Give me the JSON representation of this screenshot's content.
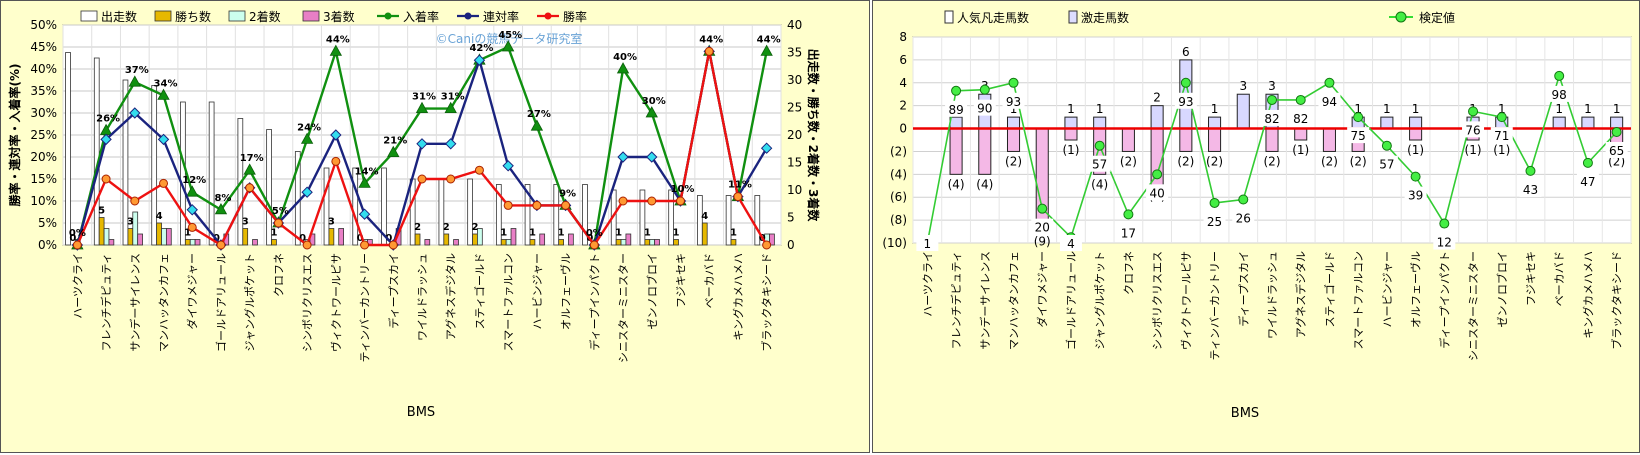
{
  "left_chart": {
    "watermark": "©Caniの競馬データ研究室",
    "legend": [
      {
        "label": "出走数",
        "kind": "bar",
        "color": "#ffffff"
      },
      {
        "label": "勝ち数",
        "kind": "bar",
        "color": "#e6b800"
      },
      {
        "label": "2着数",
        "kind": "bar",
        "color": "#ccffee"
      },
      {
        "label": "3着数",
        "kind": "bar",
        "color": "#e87fc6"
      },
      {
        "label": "入着率",
        "kind": "line",
        "color": "#109010"
      },
      {
        "label": "連対率",
        "kind": "line",
        "color": "#1a237e"
      },
      {
        "label": "勝率",
        "kind": "line",
        "color": "#ee1111"
      }
    ],
    "colors": {
      "starts": "#ffffff",
      "wins": "#e6b800",
      "seconds": "#ccffee",
      "thirds": "#e87fc6",
      "place": "#109010",
      "quinella": "#1a237e",
      "win": "#ee1111"
    }
  },
  "right_chart": {
    "legend": [
      {
        "label": "人気凡走馬数",
        "kind": "bar",
        "color": "#ffffff"
      },
      {
        "label": "激走馬数",
        "kind": "bar",
        "color": "#ddddff"
      },
      {
        "label": "検定値",
        "kind": "line",
        "color": "#33dd33"
      }
    ],
    "colors": {
      "upset": "#d8d8ff",
      "flop": "#f4b8e6",
      "stat": "#33cc33",
      "zero": "#ee0000"
    }
  },
  "chart_data": [
    {
      "type": "bar",
      "xlabel": "BMS",
      "ylabel": "勝率・連対率・入着率(%)",
      "y2label": "出走数・勝ち数・2着数・3着数",
      "ylim": [
        0,
        50
      ],
      "y2lim": [
        0,
        40
      ],
      "yticks": [
        "0%",
        "5%",
        "10%",
        "15%",
        "20%",
        "25%",
        "30%",
        "35%",
        "40%",
        "45%",
        "50%"
      ],
      "y2ticks": [
        "0",
        "5",
        "10",
        "15",
        "20",
        "25",
        "30",
        "35",
        "40"
      ],
      "categories": [
        "ハーツクライ",
        "フレンチデピュティ",
        "サンデーサイレンス",
        "マンハッタンカフェ",
        "ダイワメジャー",
        "ゴールドアリュール",
        "ジャングルポケット",
        "クロフネ",
        "シンボリクリスエス",
        "ヴィクトワールピサ",
        "ティンバーカントリー",
        "ディープスカイ",
        "ワイルドラッシュ",
        "アグネスデジタル",
        "スティゴールド",
        "スマートファルコン",
        "ハービンジャー",
        "オルフェーヴル",
        "ディープインパクト",
        "シニスターミニスター",
        "ゼンノロブロイ",
        "フジキセキ",
        "ベーカバド",
        "キングカメハメハ",
        "ブラックタキシード"
      ],
      "series": [
        {
          "name": "出走数",
          "axis": "right",
          "values": [
            35,
            34,
            30,
            29,
            26,
            26,
            23,
            21,
            17,
            14,
            14,
            14,
            12,
            12,
            12,
            11,
            11,
            11,
            11,
            10,
            10,
            10,
            9,
            9,
            9
          ]
        },
        {
          "name": "勝ち数",
          "axis": "right",
          "values": [
            0,
            5,
            3,
            4,
            1,
            0,
            3,
            1,
            0,
            3,
            0,
            0,
            2,
            2,
            2,
            1,
            1,
            1,
            0,
            1,
            1,
            1,
            4,
            1,
            0
          ]
        },
        {
          "name": "2着数",
          "axis": "right",
          "values": [
            1,
            3,
            6,
            3,
            1,
            0,
            0,
            0,
            1,
            0,
            1,
            0,
            0,
            0,
            3,
            1,
            0,
            0,
            0,
            1,
            1,
            0,
            0,
            0,
            2
          ]
        },
        {
          "name": "3着数",
          "axis": "right",
          "values": [
            0,
            1,
            2,
            3,
            1,
            2,
            1,
            0,
            2,
            3,
            1,
            3,
            1,
            1,
            0,
            3,
            2,
            2,
            0,
            2,
            1,
            0,
            0,
            0,
            2
          ]
        },
        {
          "name": "入着率",
          "axis": "left",
          "values": [
            0,
            26,
            37,
            34,
            12,
            8,
            17,
            5,
            24,
            44,
            14,
            21,
            31,
            31,
            42,
            45,
            27,
            9,
            0,
            40,
            30,
            10,
            44,
            11,
            44
          ]
        },
        {
          "name": "連対率",
          "axis": "left",
          "values": [
            0,
            24,
            30,
            24,
            8,
            0,
            13,
            5,
            12,
            25,
            7,
            0,
            23,
            23,
            42,
            18,
            9,
            9,
            0,
            20,
            20,
            10,
            44,
            11,
            22
          ]
        },
        {
          "name": "勝率",
          "axis": "left",
          "values": [
            0,
            15,
            10,
            14,
            4,
            0,
            13,
            5,
            0,
            19,
            0,
            0,
            15,
            15,
            17,
            9,
            9,
            9,
            0,
            10,
            10,
            10,
            44,
            11,
            0
          ]
        }
      ],
      "data_labels": {
        "place": [
          "0%",
          "26%",
          "37%",
          "34%",
          "12%",
          "8%",
          "17%",
          "5%",
          "24%",
          "44%",
          "14%",
          "21%",
          "31%",
          "31%",
          "42%",
          "45%",
          "27%",
          "9%",
          "0%",
          "40%",
          "30%",
          "10%",
          "44%",
          "11%",
          "44%"
        ],
        "wins": [
          "0",
          "5",
          "3",
          "4",
          "1",
          "0",
          "3",
          "1",
          "0",
          "3",
          "0",
          "0",
          "2",
          "2",
          "2",
          "1",
          "1",
          "1",
          "0",
          "1",
          "1",
          "1",
          "4",
          "1",
          "0"
        ]
      },
      "grid": true,
      "legend_position": "top"
    },
    {
      "type": "bar",
      "xlabel": "BMS",
      "ylim": [
        -10,
        8
      ],
      "yticks": [
        "(10)",
        "(8)",
        "(6)",
        "(4)",
        "(2)",
        "0",
        "2",
        "4",
        "6",
        "8"
      ],
      "categories": [
        "ハーツクライ",
        "フレンチデピュティ",
        "サンデーサイレンス",
        "マンハッタンカフェ",
        "ダイワメジャー",
        "ゴールドアリュール",
        "ジャングルポケット",
        "クロフネ",
        "シンボリクリスエス",
        "ヴィクトワールピサ",
        "ティンバーカントリー",
        "ディープスカイ",
        "ワイルドラッシュ",
        "アグネスデジタル",
        "スティゴールド",
        "スマートファルコン",
        "ハービンジャー",
        "オルフェーヴル",
        "ディープインパクト",
        "シニスターミニスター",
        "ゼンノロブロイ",
        "フジキセキ",
        "ベーカバド",
        "キングカメハメハ",
        "ブラックタキシード"
      ],
      "series": [
        {
          "name": "人気凡走馬数",
          "values": [
            0,
            -4,
            -4,
            -2,
            -9,
            -1,
            -4,
            -2,
            -5,
            -2,
            -2,
            0,
            -2,
            -1,
            -2,
            -2,
            0,
            -1,
            0,
            -1,
            -1,
            0,
            0,
            0,
            -2
          ]
        },
        {
          "name": "激走馬数",
          "values": [
            0,
            1,
            3,
            1,
            0,
            1,
            1,
            0,
            2,
            6,
            1,
            3,
            3,
            0,
            0,
            1,
            1,
            1,
            0,
            1,
            1,
            0,
            1,
            1,
            1
          ]
        },
        {
          "name": "検定値",
          "values": [
            -10,
            3.3,
            3.4,
            4,
            -7,
            -9.5,
            -1.5,
            -7.5,
            -4,
            4,
            -6.5,
            -6.2,
            2.5,
            2.5,
            4,
            1,
            -1.5,
            -4.2,
            -8.3,
            1.5,
            1,
            -3.7,
            4.6,
            -3,
            -0.3
          ]
        }
      ],
      "data_labels": {
        "stat": [
          "1",
          "89",
          "90",
          "93",
          "20",
          "4",
          "57",
          "17",
          "40",
          "93",
          "25",
          "26",
          "82",
          "82",
          "94",
          "75",
          "57",
          "39",
          "12",
          "76",
          "71",
          "43",
          "98",
          "47",
          "65"
        ],
        "upset": [
          "",
          "1",
          "3",
          "1",
          "",
          "1",
          "1",
          "",
          "2",
          "6",
          "1",
          "3",
          "3",
          "",
          "",
          "1",
          "1",
          "1",
          "",
          "1",
          "1",
          "",
          "1",
          "1",
          "1"
        ],
        "flop": [
          "",
          "(4)",
          "(4)",
          "(2)",
          "(9)",
          "(1)",
          "(4)",
          "(2)",
          "(5)",
          "(2)",
          "(2)",
          "",
          "(2)",
          "(1)",
          "(2)",
          "(2)",
          "",
          "(1)",
          "",
          "(1)",
          "(1)",
          "",
          "",
          "",
          "(2)"
        ]
      },
      "grid": true,
      "legend_position": "top"
    }
  ]
}
